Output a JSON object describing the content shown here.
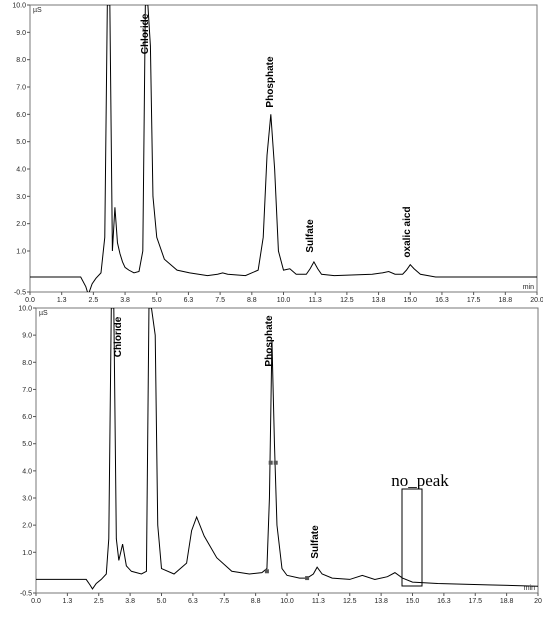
{
  "chart_data": [
    {
      "type": "line",
      "y_label": "µS",
      "x_label": "min",
      "xlim": [
        0,
        20
      ],
      "ylim": [
        -0.5,
        10
      ],
      "xticks": [
        {
          "value": 0,
          "label": "0.0"
        },
        {
          "value": 1.25,
          "label": "1.3"
        },
        2.5,
        {
          "value": 3.75,
          "label": "3.8"
        },
        {
          "value": 5,
          "label": "5.0"
        },
        {
          "value": 6.25,
          "label": "6.3"
        },
        7.5,
        {
          "value": 8.75,
          "label": "8.8"
        },
        {
          "value": 10,
          "label": "10.0"
        },
        {
          "value": 11.25,
          "label": "11.3"
        },
        12.5,
        {
          "value": 13.75,
          "label": "13.8"
        },
        {
          "value": 15,
          "label": "15.0"
        },
        {
          "value": 16.25,
          "label": "16.3"
        },
        17.5,
        {
          "value": 18.75,
          "label": "18.8"
        },
        {
          "value": 20,
          "label": "20.0"
        }
      ],
      "yticks": [
        -0.5,
        {
          "value": 1,
          "label": "1.0"
        },
        {
          "value": 2,
          "label": "2.0"
        },
        {
          "value": 3,
          "label": "3.0"
        },
        {
          "value": 4,
          "label": "4.0"
        },
        {
          "value": 5,
          "label": "5.0"
        },
        {
          "value": 6,
          "label": "6.0"
        },
        {
          "value": 7,
          "label": "7.0"
        },
        {
          "value": 8,
          "label": "8.0"
        },
        {
          "value": 9,
          "label": "9.0"
        },
        {
          "value": 10,
          "label": "10.0"
        }
      ],
      "series": [
        {
          "color": "#000000",
          "x": [
            0,
            2.0,
            2.2,
            2.3,
            2.45,
            2.6,
            2.8,
            2.95,
            3.05,
            3.15,
            3.25,
            3.35,
            3.45,
            3.55,
            3.65,
            3.75,
            3.9,
            4.1,
            4.3,
            4.45,
            4.55,
            4.65,
            4.75,
            4.85,
            5.0,
            5.3,
            5.8,
            6.3,
            7.0,
            7.4,
            7.6,
            7.8,
            8.5,
            9.0,
            9.2,
            9.35,
            9.5,
            9.65,
            9.8,
            10.0,
            10.25,
            10.5,
            10.9,
            11.05,
            11.2,
            11.35,
            11.5,
            12.0,
            13.5,
            13.9,
            14.15,
            14.4,
            14.7,
            14.85,
            15.0,
            15.15,
            15.4,
            16.0,
            20.0
          ],
          "values": [
            0.05,
            0.05,
            -0.3,
            -0.6,
            -0.2,
            0.0,
            0.2,
            1.5,
            10.0,
            10.0,
            1.0,
            2.6,
            1.3,
            0.9,
            0.6,
            0.4,
            0.3,
            0.2,
            0.25,
            1.0,
            10.0,
            10.0,
            8.5,
            3.0,
            1.5,
            0.7,
            0.3,
            0.2,
            0.1,
            0.15,
            0.2,
            0.15,
            0.1,
            0.3,
            1.5,
            4.5,
            6.0,
            4.0,
            1.0,
            0.3,
            0.35,
            0.15,
            0.15,
            0.35,
            0.6,
            0.35,
            0.15,
            0.1,
            0.15,
            0.2,
            0.25,
            0.15,
            0.15,
            0.3,
            0.5,
            0.35,
            0.15,
            0.05,
            0.05
          ]
        }
      ],
      "annotations": [
        "Chloride",
        "Phosphate",
        "Sulfate",
        "oxalic aicd"
      ]
    },
    {
      "type": "line",
      "y_label": "µS",
      "x_label": "min",
      "xlim": [
        0,
        20
      ],
      "ylim": [
        -0.5,
        10
      ],
      "xticks": [
        {
          "value": 0,
          "label": "0.0"
        },
        {
          "value": 1.25,
          "label": "1.3"
        },
        2.5,
        {
          "value": 3.75,
          "label": "3.8"
        },
        {
          "value": 5,
          "label": "5.0"
        },
        {
          "value": 6.25,
          "label": "6.3"
        },
        7.5,
        {
          "value": 8.75,
          "label": "8.8"
        },
        {
          "value": 10,
          "label": "10.0"
        },
        {
          "value": 11.25,
          "label": "11.3"
        },
        12.5,
        {
          "value": 13.75,
          "label": "13.8"
        },
        {
          "value": 15,
          "label": "15.0"
        },
        {
          "value": 16.25,
          "label": "16.3"
        },
        17.5,
        {
          "value": 18.75,
          "label": "18.8"
        },
        20
      ],
      "yticks": [
        -0.5,
        {
          "value": 1,
          "label": "1.0"
        },
        {
          "value": 2,
          "label": "2.0"
        },
        {
          "value": 3,
          "label": "3.0"
        },
        {
          "value": 4,
          "label": "4.0"
        },
        {
          "value": 5,
          "label": "5.0"
        },
        {
          "value": 6,
          "label": "6.0"
        },
        {
          "value": 7,
          "label": "7.0"
        },
        {
          "value": 8,
          "label": "8.0"
        },
        {
          "value": 9,
          "label": "9.0"
        },
        {
          "value": 10,
          "label": "10.0"
        }
      ],
      "series": [
        {
          "color": "#000000",
          "x": [
            0,
            2.0,
            2.15,
            2.25,
            2.4,
            2.6,
            2.8,
            2.9,
            3.0,
            3.1,
            3.2,
            3.3,
            3.45,
            3.6,
            3.8,
            4.2,
            4.4,
            4.5,
            4.6,
            4.75,
            4.85,
            5.0,
            5.5,
            6.0,
            6.2,
            6.4,
            6.7,
            7.2,
            7.8,
            8.5,
            9.0,
            9.2,
            9.3,
            9.4,
            9.5,
            9.6,
            9.8,
            10.0,
            10.5,
            10.8,
            11.05,
            11.2,
            11.4,
            11.8,
            12.5,
            13.0,
            13.5,
            14.0,
            14.3,
            14.6,
            15.0,
            16.0,
            18.0,
            20.0
          ],
          "values": [
            0.0,
            0.0,
            -0.2,
            -0.35,
            -0.15,
            0.0,
            0.2,
            1.5,
            10.0,
            10.0,
            1.5,
            0.7,
            1.3,
            0.5,
            0.3,
            0.2,
            0.3,
            10.0,
            10.0,
            9.0,
            2.0,
            0.4,
            0.2,
            0.6,
            1.8,
            2.3,
            1.6,
            0.8,
            0.3,
            0.2,
            0.25,
            0.4,
            3.0,
            8.8,
            5.0,
            2.0,
            0.4,
            0.15,
            0.05,
            0.05,
            0.2,
            0.45,
            0.2,
            0.05,
            0.0,
            0.15,
            0.0,
            0.1,
            0.25,
            0.05,
            -0.1,
            -0.15,
            -0.2,
            -0.25
          ]
        }
      ],
      "markers": {
        "color": "#555555",
        "x": [
          9.2,
          9.35,
          9.55,
          10.8
        ],
        "values": [
          0.3,
          4.3,
          4.3,
          0.05
        ]
      },
      "annotations": [
        "Chloride",
        "Phosphate",
        "Sulfate",
        "no_peak"
      ]
    }
  ]
}
